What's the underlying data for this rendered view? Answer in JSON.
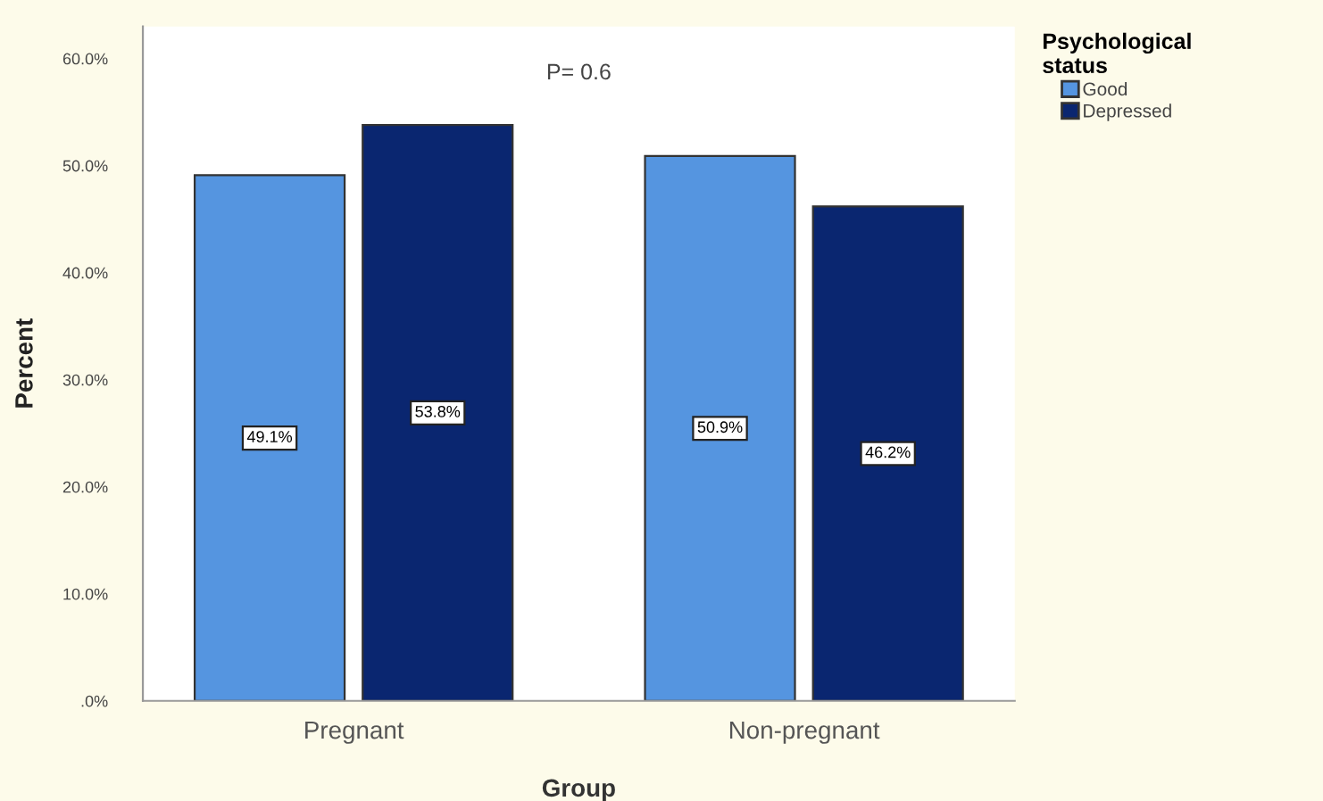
{
  "chart_data": {
    "type": "bar",
    "xlabel": "Group",
    "ylabel": "Percent",
    "legend_title": "Psychological status",
    "categories": [
      "Pregnant",
      "Non-pregnant"
    ],
    "series": [
      {
        "name": "Good",
        "color": "#5595e0",
        "values": [
          49.1,
          50.9
        ],
        "value_labels": [
          "49.1%",
          "50.9%"
        ]
      },
      {
        "name": "Depressed",
        "color": "#0a2670",
        "values": [
          53.8,
          46.2
        ],
        "value_labels": [
          "53.8%",
          "46.2%"
        ]
      }
    ],
    "ylim": [
      0,
      63
    ],
    "yticks": [
      {
        "value": 0,
        "label": ".0%"
      },
      {
        "value": 10,
        "label": "10.0%"
      },
      {
        "value": 20,
        "label": "20.0%"
      },
      {
        "value": 30,
        "label": "30.0%"
      },
      {
        "value": 40,
        "label": "40.0%"
      },
      {
        "value": 50,
        "label": "50.0%"
      },
      {
        "value": 60,
        "label": "60.0%"
      }
    ],
    "annotations": [
      "P= 0.6"
    ],
    "legend": "top right",
    "grid": false
  }
}
